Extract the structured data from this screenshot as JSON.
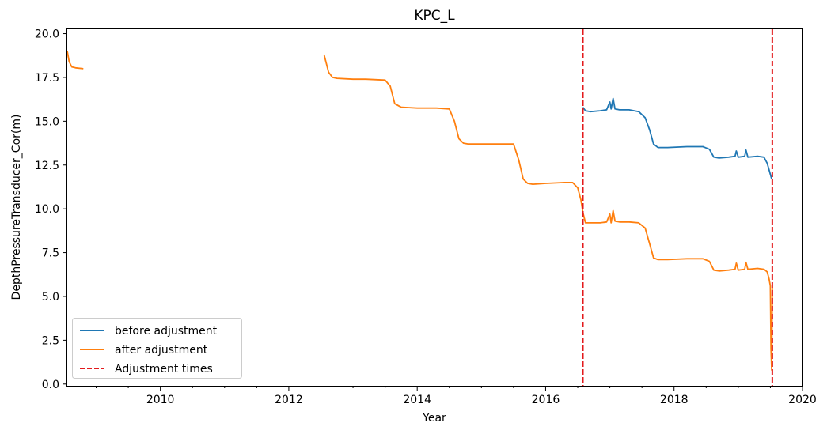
{
  "chart_data": {
    "type": "line",
    "title": "KPC_L",
    "xlabel": "Year",
    "ylabel": "DepthPressureTransducer_Cor(m)",
    "xlim": [
      2008.55,
      2020.0
    ],
    "ylim": [
      -0.1,
      20.25
    ],
    "x_ticks": [
      2010,
      2012,
      2014,
      2016,
      2018,
      2020
    ],
    "x_tick_labels": [
      "2010",
      "2012",
      "2014",
      "2016",
      "2018",
      "2020"
    ],
    "y_ticks": [
      0.0,
      2.5,
      5.0,
      7.5,
      10.0,
      12.5,
      15.0,
      17.5,
      20.0
    ],
    "y_tick_labels": [
      "0.0",
      "2.5",
      "5.0",
      "7.5",
      "10.0",
      "12.5",
      "15.0",
      "17.5",
      "20.0"
    ],
    "grid": false,
    "legend_position": "lower-left",
    "series": [
      {
        "name": "before adjustment",
        "color": "#1f77b4",
        "x": [
          2016.58,
          2016.62,
          2016.7,
          2016.85,
          2016.95,
          2017.0,
          2017.02,
          2017.05,
          2017.08,
          2017.15,
          2017.3,
          2017.45,
          2017.55,
          2017.62,
          2017.68,
          2017.75,
          2017.9,
          2018.2,
          2018.45,
          2018.55,
          2018.62,
          2018.7,
          2018.85,
          2018.95,
          2018.97,
          2019.0,
          2019.1,
          2019.12,
          2019.15,
          2019.3,
          2019.4,
          2019.45,
          2019.52
        ],
        "y": [
          15.8,
          15.6,
          15.55,
          15.6,
          15.65,
          16.1,
          15.7,
          16.3,
          15.7,
          15.65,
          15.65,
          15.55,
          15.2,
          14.5,
          13.7,
          13.5,
          13.5,
          13.55,
          13.55,
          13.4,
          12.95,
          12.9,
          12.95,
          13.0,
          13.3,
          12.95,
          13.0,
          13.35,
          12.95,
          13.0,
          12.95,
          12.6,
          11.7
        ]
      },
      {
        "name": "after adjustment",
        "color": "#ff7f0e",
        "segments": [
          {
            "x": [
              2008.55,
              2008.58,
              2008.62,
              2008.68,
              2008.8
            ],
            "y": [
              19.0,
              18.4,
              18.1,
              18.05,
              18.0
            ]
          },
          {
            "x": [
              2012.55,
              2012.62,
              2012.68,
              2012.75,
              2013.0,
              2013.2,
              2013.5,
              2013.58,
              2013.65,
              2013.75,
              2014.0,
              2014.3,
              2014.5,
              2014.58,
              2014.65,
              2014.72,
              2014.8,
              2015.0,
              2015.3,
              2015.5,
              2015.58,
              2015.65,
              2015.72,
              2015.8,
              2016.0,
              2016.3,
              2016.42,
              2016.5,
              2016.55,
              2016.58,
              2016.62,
              2016.7,
              2016.85,
              2016.95,
              2017.0,
              2017.02,
              2017.05,
              2017.08,
              2017.15,
              2017.3,
              2017.45,
              2017.55,
              2017.62,
              2017.68,
              2017.75,
              2017.9,
              2018.2,
              2018.45,
              2018.55,
              2018.62,
              2018.7,
              2018.85,
              2018.95,
              2018.97,
              2019.0,
              2019.1,
              2019.12,
              2019.15,
              2019.3,
              2019.4,
              2019.45,
              2019.48,
              2019.5,
              2019.51,
              2019.52,
              2019.53
            ],
            "y": [
              18.8,
              17.8,
              17.5,
              17.45,
              17.4,
              17.4,
              17.35,
              17.0,
              16.0,
              15.8,
              15.75,
              15.75,
              15.7,
              15.0,
              14.0,
              13.75,
              13.7,
              13.7,
              13.7,
              13.7,
              12.8,
              11.7,
              11.45,
              11.4,
              11.45,
              11.5,
              11.5,
              11.2,
              10.5,
              9.8,
              9.2,
              9.2,
              9.2,
              9.25,
              9.7,
              9.2,
              9.9,
              9.3,
              9.25,
              9.25,
              9.2,
              8.9,
              8.0,
              7.2,
              7.1,
              7.1,
              7.15,
              7.15,
              7.0,
              6.5,
              6.45,
              6.5,
              6.55,
              6.9,
              6.5,
              6.55,
              6.95,
              6.55,
              6.6,
              6.55,
              6.4,
              6.0,
              5.6,
              2.0,
              0.8,
              5.5
            ]
          }
        ]
      },
      {
        "name": "Adjustment times",
        "color": "#e31a1c",
        "style": "dashed",
        "vertical_lines_x": [
          2016.58,
          2019.53
        ]
      }
    ]
  }
}
